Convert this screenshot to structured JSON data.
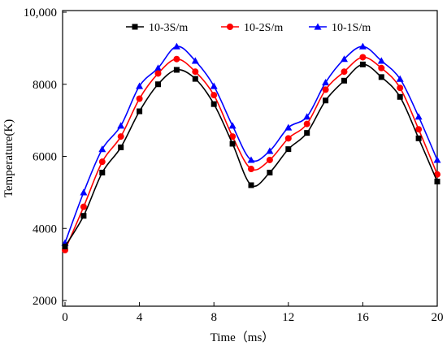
{
  "chart_data": {
    "type": "line",
    "title": "",
    "xlabel": "Time（ms）",
    "ylabel": "Temperature(K)",
    "xlim": [
      0,
      20
    ],
    "ylim": [
      2000,
      10000
    ],
    "x_ticks": [
      "0",
      "4",
      "8",
      "12",
      "16",
      "20"
    ],
    "y_ticks": [
      "2000",
      "4000",
      "6000",
      "8000",
      "10,000"
    ],
    "grid": false,
    "legend_position": "top-center",
    "x": [
      0,
      1,
      2,
      3,
      4,
      5,
      6,
      7,
      8,
      9,
      10,
      11,
      12,
      13,
      14,
      15,
      16,
      17,
      18,
      19,
      20
    ],
    "series": [
      {
        "name": "10-3S/m",
        "color": "#000000",
        "marker": "square",
        "values": [
          3500,
          4350,
          5550,
          6250,
          7250,
          8000,
          8400,
          8150,
          7450,
          6350,
          5200,
          5550,
          6200,
          6650,
          7550,
          8100,
          8550,
          8200,
          7650,
          6500,
          5300
        ]
      },
      {
        "name": "10-2S/m",
        "color": "#ff0000",
        "marker": "circle",
        "values": [
          3400,
          4600,
          5850,
          6550,
          7600,
          8300,
          8700,
          8350,
          7700,
          6550,
          5650,
          5900,
          6500,
          6900,
          7850,
          8350,
          8750,
          8450,
          7900,
          6750,
          5500
        ]
      },
      {
        "name": "10-1S/m",
        "color": "#0000ff",
        "marker": "triangle",
        "values": [
          3600,
          5000,
          6200,
          6850,
          7950,
          8450,
          9050,
          8650,
          7950,
          6850,
          5900,
          6150,
          6800,
          7100,
          8050,
          8700,
          9050,
          8650,
          8150,
          7100,
          5900
        ]
      }
    ]
  }
}
